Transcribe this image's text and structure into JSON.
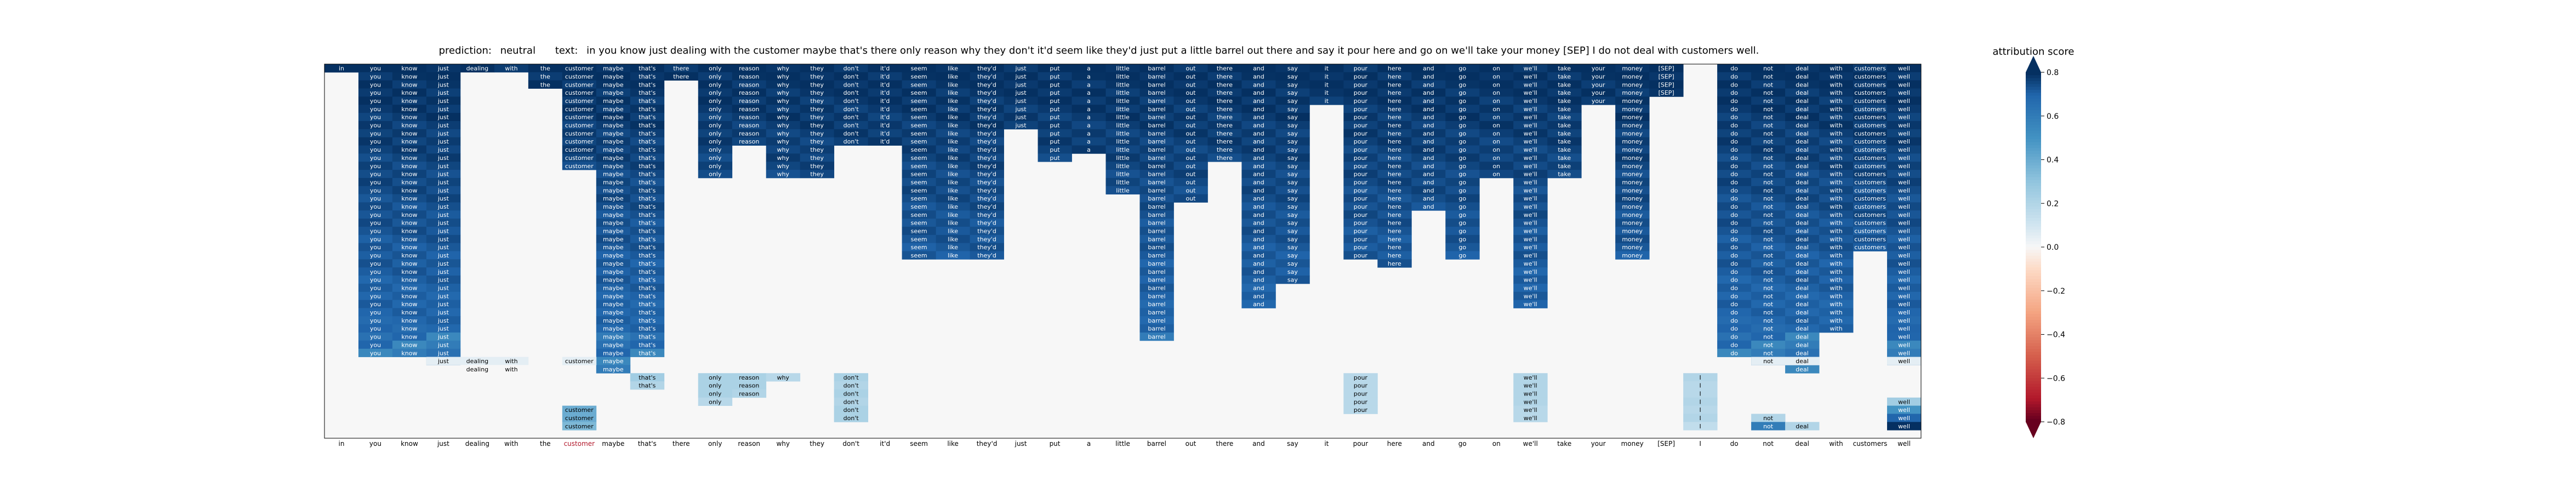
{
  "chart_data": {
    "type": "heatmap",
    "title_parts": [
      "prediction:",
      "neutral",
      "text:",
      "in you know just dealing with the customer maybe that's there only reason why they don't it'd seem like they'd just put a little barrel out there and say it pour here and go on we'll take your money [SEP] I do not deal with customers well."
    ],
    "tokens": [
      "in",
      "you",
      "know",
      "just",
      "dealing",
      "with",
      "the",
      "customer",
      "maybe",
      "that's",
      "there",
      "only",
      "reason",
      "why",
      "they",
      "don't",
      "it'd",
      "seem",
      "like",
      "they'd",
      "just",
      "put",
      "a",
      "little",
      "barrel",
      "out",
      "there",
      "and",
      "say",
      "it",
      "pour",
      "here",
      "and",
      "go",
      "on",
      "we'll",
      "take",
      "your",
      "money",
      "[SEP]",
      "I",
      "do",
      "not",
      "deal",
      "with",
      "customers",
      "well"
    ],
    "bottom_axis_highlight": {
      "token": "customer",
      "color": "#b2182b"
    },
    "colorbar": {
      "label": "attribution score",
      "range": [
        -0.8,
        0.8
      ],
      "ticks": [
        "0.8",
        "0.6",
        "0.4",
        "0.2",
        "0.0",
        "−0.2",
        "−0.4",
        "−0.6",
        "−0.8"
      ],
      "colormap": "RdBu"
    },
    "top_block": {
      "description_free": true,
      "row_count": 36,
      "span_ends": [
        1,
        36,
        36,
        37,
        1,
        1,
        3,
        13,
        38,
        36,
        2,
        14,
        10,
        14,
        14,
        10,
        10,
        24,
        24,
        24,
        8,
        12,
        11,
        16,
        34,
        17,
        12,
        30,
        27,
        5,
        24,
        25,
        18,
        24,
        14,
        30,
        14,
        5,
        24,
        4,
        0,
        36,
        37,
        38,
        33,
        23,
        37,
        37
      ],
      "span_starts": [
        0,
        0,
        0,
        0,
        0,
        0,
        0,
        0,
        0,
        0,
        0,
        0,
        0,
        0,
        0,
        0,
        0,
        0,
        0,
        0,
        0,
        0,
        0,
        0,
        0,
        0,
        0,
        0,
        0,
        0,
        0,
        0,
        0,
        0,
        0,
        0,
        0,
        0,
        0,
        0,
        0,
        0,
        0,
        0,
        0,
        0,
        0,
        0
      ]
    },
    "top_block_light_rows": {
      "just": 37,
      "dealing": 37,
      "with": 37,
      "customer": 37,
      "not": 37,
      "deal": 37,
      "well": 37
    },
    "middle_block": {
      "that's": [
        0.25,
        0.2
      ],
      "only": [
        0.22,
        0.22,
        0.22,
        0.18
      ],
      "reason": [
        0.22,
        0.22,
        0.2
      ],
      "why": [
        0.18
      ],
      "don't": [
        0.22,
        0.2,
        0.22,
        0.2,
        0.22,
        0.22
      ],
      "pour": [
        0.18,
        0.18,
        0.18,
        0.18,
        0.18
      ],
      "we'll": [
        0.2,
        0.2,
        0.2,
        0.2,
        0.18,
        0.18
      ],
      "I": [
        0.2,
        0.18,
        0.18,
        0.2,
        0.18,
        0.2,
        0.15
      ]
    },
    "bottom_block": {
      "customer": [
        0.4,
        0.4,
        0.35
      ],
      "not": [
        0.2,
        0.6
      ],
      "deal": [
        0.2
      ],
      "well": [
        0.25,
        0.5,
        0.7,
        0.8
      ]
    },
    "single_cell_row_40": {
      "in": 0.85,
      "dealing": 0.0,
      "with": 0.0
    }
  }
}
